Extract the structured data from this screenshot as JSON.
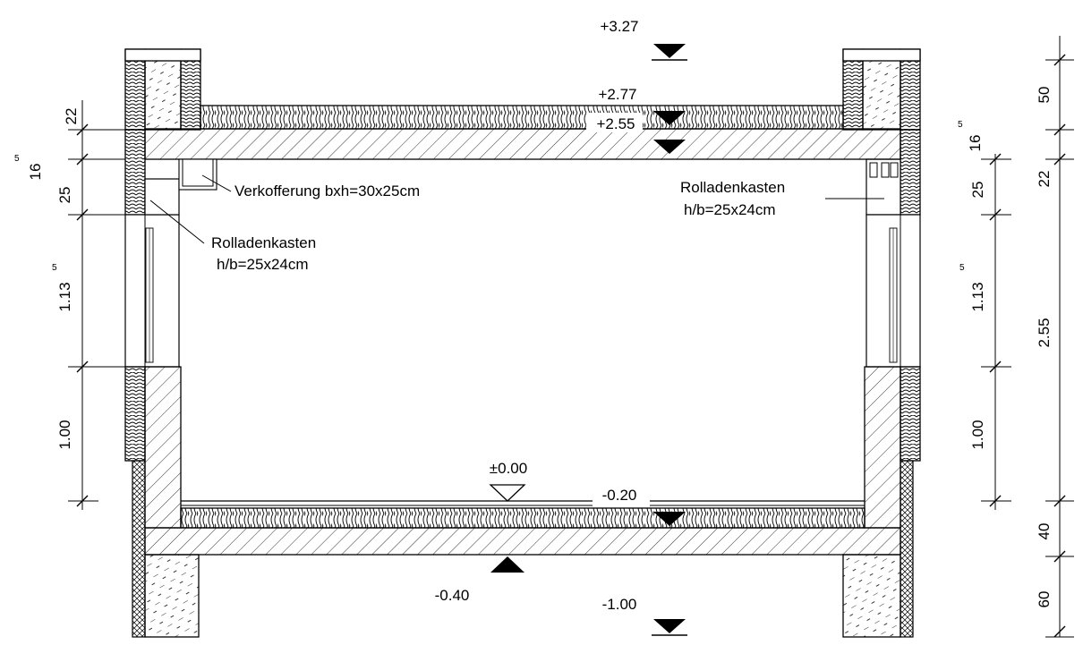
{
  "levels": {
    "top": "+3.27",
    "roof_upper": "+2.77",
    "roof_lower": "+2.55",
    "floor": "±0.00",
    "slab_top": "-0.20",
    "slab_bottom": "-0.40",
    "foundation": "-1.00"
  },
  "annotations": {
    "verkofferung": "Verkofferung bxh=30x25cm",
    "rolladen_left_1": "Rolladenkasten",
    "rolladen_left_2": "h/b=25x24cm",
    "rolladen_right_1": "Rolladenkasten",
    "rolladen_right_2": "h/b=25x24cm"
  },
  "dims_left": {
    "d22": "22",
    "d16": "16",
    "d16_sup": "5",
    "d25": "25",
    "d113": "1.13",
    "d113_sup": "5",
    "d100": "1.00"
  },
  "dims_mid_right": {
    "d16": "16",
    "d16_sup": "5",
    "d25": "25",
    "d113": "1.13",
    "d113_sup": "5",
    "d100": "1.00"
  },
  "dims_far_right": {
    "d50": "50",
    "d22": "22",
    "d255": "2.55",
    "d40": "40",
    "d60": "60"
  }
}
